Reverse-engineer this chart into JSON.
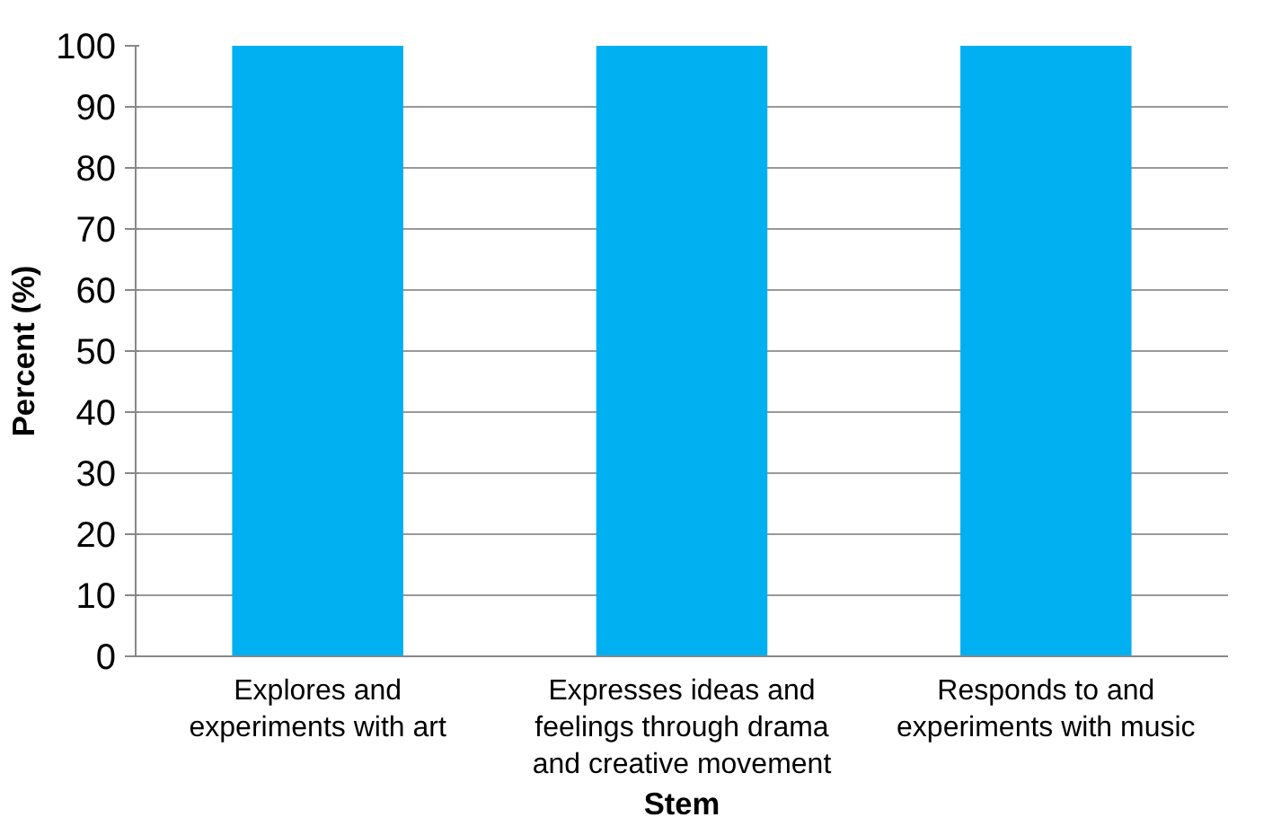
{
  "chart_data": {
    "type": "bar",
    "xlabel": "Stem",
    "ylabel": "Percent (%)",
    "categories": [
      "Explores and experiments with art",
      "Expresses ideas and feelings through drama and creative movement",
      "Responds to and experiments with music"
    ],
    "values": [
      100,
      100,
      100
    ],
    "color": "#00b0f0",
    "ylim": [
      0,
      100
    ],
    "yticks": [
      0,
      10,
      20,
      30,
      40,
      50,
      60,
      70,
      80,
      90,
      100
    ],
    "grid": "y"
  }
}
